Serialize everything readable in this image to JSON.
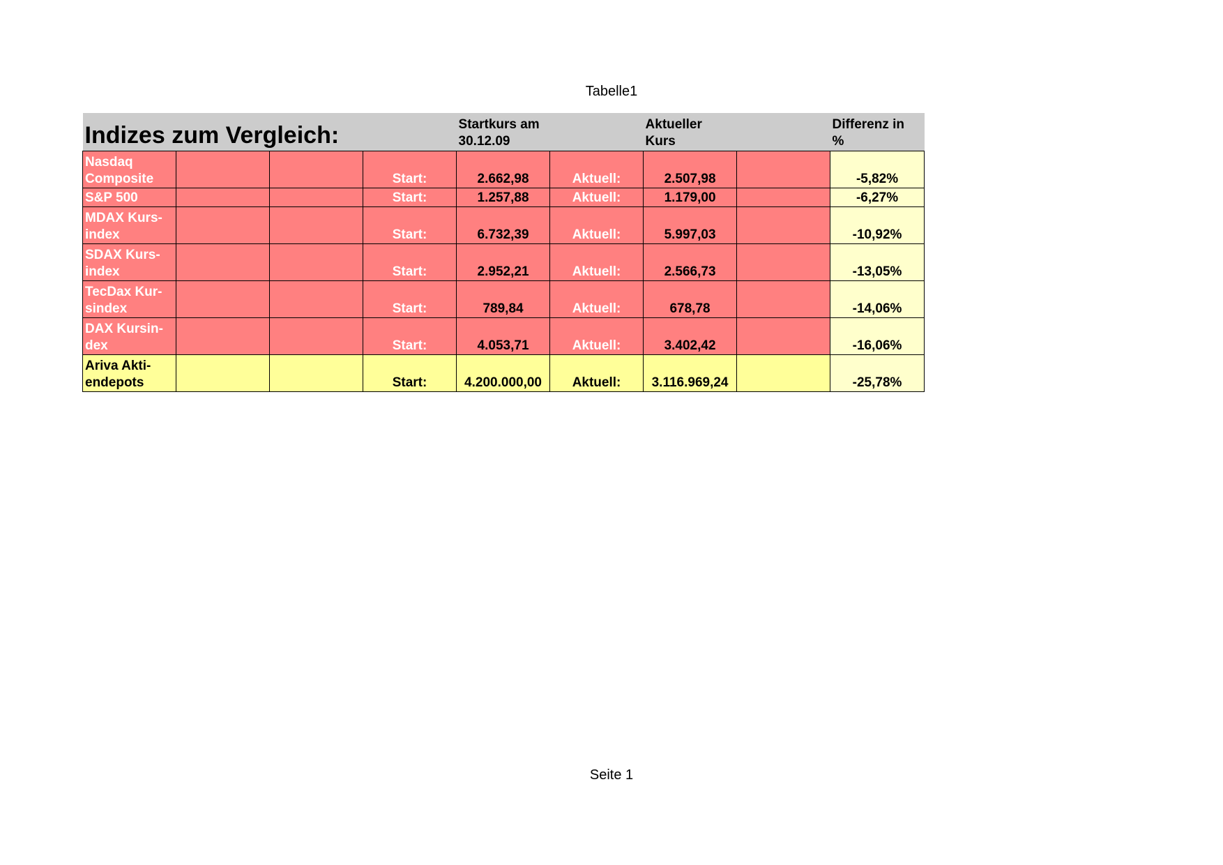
{
  "page": {
    "header": "Tabelle1",
    "footer": "Seite 1"
  },
  "table": {
    "title": "Indizes zum Vergleich:",
    "start_header_line1": "Startkurs am",
    "start_header_line2": "30.12.09",
    "current_header_line1": "Aktueller",
    "current_header_line2": "Kurs",
    "diff_header_line1": "Differenz in",
    "diff_header_line2": "%",
    "rows": [
      {
        "name_line1": "Nasdaq",
        "name_line2": "Composite",
        "start_label": "Start:",
        "start_value": "2.662,98",
        "current_label": "Aktuell:",
        "current_value": "2.507,98",
        "difference": "-5,82%"
      },
      {
        "name_line1": "S&P 500",
        "name_line2": "",
        "start_label": "Start:",
        "start_value": "1.257,88",
        "current_label": "Aktuell:",
        "current_value": "1.179,00",
        "difference": "-6,27%"
      },
      {
        "name_line1": "MDAX Kurs-",
        "name_line2": "index",
        "start_label": "Start:",
        "start_value": "6.732,39",
        "current_label": "Aktuell:",
        "current_value": "5.997,03",
        "difference": "-10,92%"
      },
      {
        "name_line1": "SDAX Kurs-",
        "name_line2": "index",
        "start_label": "Start:",
        "start_value": "2.952,21",
        "current_label": "Aktuell:",
        "current_value": "2.566,73",
        "difference": "-13,05%"
      },
      {
        "name_line1": "TecDax Kur-",
        "name_line2": "sindex",
        "start_label": "Start:",
        "start_value": "789,84",
        "current_label": "Aktuell:",
        "current_value": "678,78",
        "difference": "-14,06%"
      },
      {
        "name_line1": "DAX Kursin-",
        "name_line2": "dex",
        "start_label": "Start:",
        "start_value": "4.053,71",
        "current_label": "Aktuell:",
        "current_value": "3.402,42",
        "difference": "-16,06%"
      },
      {
        "name_line1": "Ariva Akti-",
        "name_line2": "endepots",
        "start_label": "Start:",
        "start_value": "4.200.000,00",
        "current_label": "Aktuell:",
        "current_value": "3.116.969,24",
        "difference": "-25,78%"
      }
    ]
  },
  "colors": {
    "header_fill": "#cccccc",
    "index_row_fill": "#ff8080",
    "depot_row_fill": "#ffff99",
    "difference_fill": "#ffffcc"
  }
}
